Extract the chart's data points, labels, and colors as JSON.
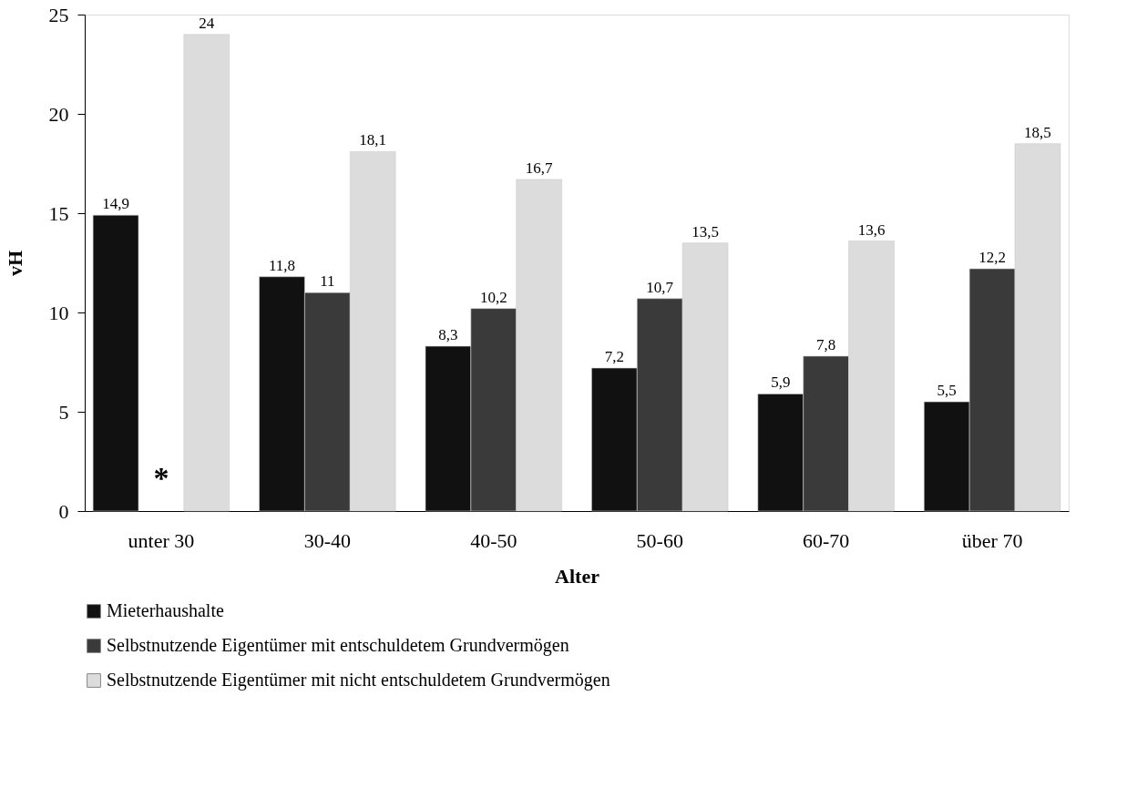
{
  "chart_data": {
    "type": "bar",
    "xlabel": "Alter",
    "ylabel": "vH",
    "categories": [
      "unter 30",
      "30-40",
      "40-50",
      "50-60",
      "60-70",
      "über 70"
    ],
    "series": [
      {
        "name": "Mieterhaushalte",
        "color": "#111111",
        "values": [
          14.9,
          11.8,
          8.3,
          7.2,
          5.9,
          5.5
        ],
        "value_labels": [
          "14,9",
          "11,8",
          "8,3",
          "7,2",
          "5,9",
          "5,5"
        ]
      },
      {
        "name": "Selbstnutzende Eigentümer mit entschuldetem Grundvermögen",
        "color": "#3a3a3a",
        "values": [
          null,
          11,
          10.2,
          10.7,
          7.8,
          12.2
        ],
        "value_labels": [
          null,
          "11",
          "10,2",
          "10,7",
          "7,8",
          "12,2"
        ]
      },
      {
        "name": "Selbstnutzende Eigentümer mit nicht entschuldetem Grundvermögen",
        "color": "#dcdcdc",
        "values": [
          24,
          18.1,
          16.7,
          13.5,
          13.6,
          18.5
        ],
        "value_labels": [
          "24",
          "18,1",
          "16,7",
          "13,5",
          "13,6",
          "18,5"
        ]
      }
    ],
    "annotations": [
      "*"
    ],
    "ylim": [
      0,
      25
    ],
    "yticks": [
      0,
      5,
      10,
      15,
      20,
      25
    ],
    "grid": false,
    "legend": "bottom"
  }
}
